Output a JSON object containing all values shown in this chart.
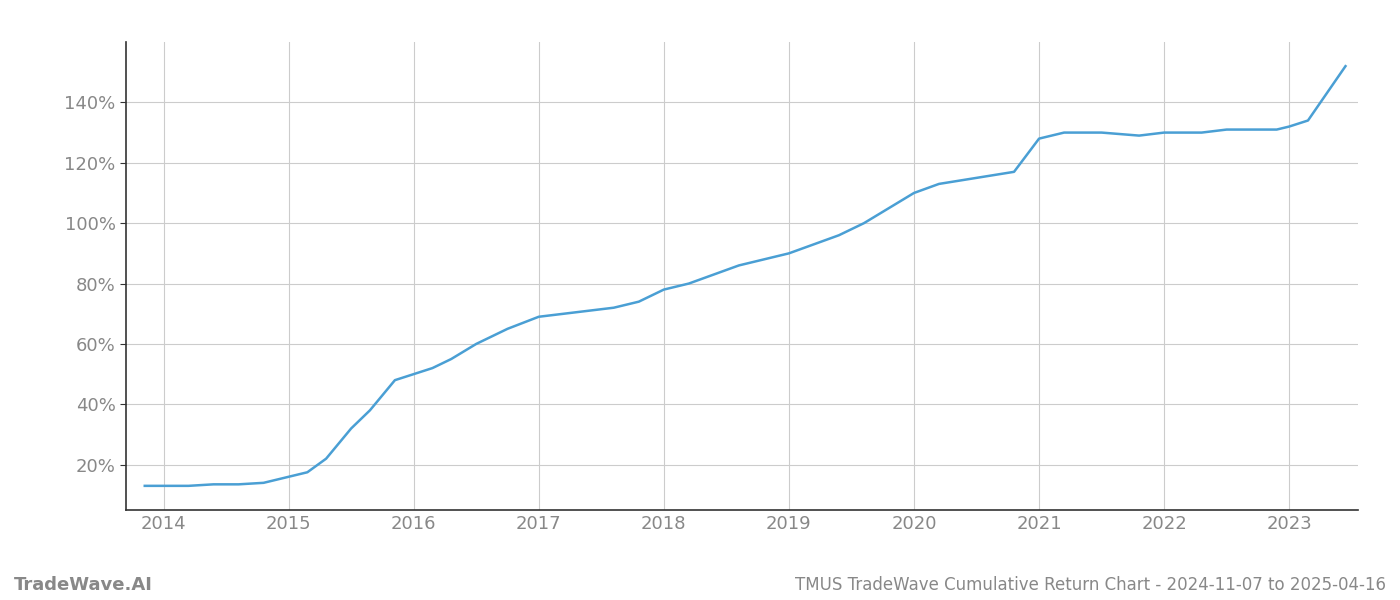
{
  "title": "TMUS TradeWave Cumulative Return Chart - 2024-11-07 to 2025-04-16",
  "watermark": "TradeWave.AI",
  "line_color": "#4a9fd4",
  "background_color": "#ffffff",
  "grid_color": "#cccccc",
  "x_values": [
    2013.85,
    2014.0,
    2014.2,
    2014.4,
    2014.6,
    2014.8,
    2015.0,
    2015.05,
    2015.1,
    2015.15,
    2015.3,
    2015.5,
    2015.65,
    2015.85,
    2016.0,
    2016.15,
    2016.3,
    2016.5,
    2016.75,
    2017.0,
    2017.2,
    2017.4,
    2017.6,
    2017.8,
    2018.0,
    2018.2,
    2018.4,
    2018.6,
    2018.8,
    2019.0,
    2019.2,
    2019.4,
    2019.6,
    2019.8,
    2020.0,
    2020.2,
    2020.35,
    2020.5,
    2020.8,
    2021.0,
    2021.1,
    2021.2,
    2021.5,
    2021.8,
    2022.0,
    2022.3,
    2022.5,
    2022.65,
    2022.8,
    2022.9,
    2023.0,
    2023.15,
    2023.3,
    2023.45
  ],
  "y_values": [
    13,
    13,
    13,
    13.5,
    13.5,
    14,
    16,
    16.5,
    17,
    17.5,
    22,
    32,
    38,
    48,
    50,
    52,
    55,
    60,
    65,
    69,
    70,
    71,
    72,
    74,
    78,
    80,
    83,
    86,
    88,
    90,
    93,
    96,
    100,
    105,
    110,
    113,
    114,
    115,
    117,
    128,
    129,
    130,
    130,
    129,
    130,
    130,
    131,
    131,
    131,
    131,
    132,
    134,
    143,
    152
  ],
  "xlim": [
    2013.7,
    2023.55
  ],
  "ylim": [
    5,
    160
  ],
  "yticks": [
    20,
    40,
    60,
    80,
    100,
    120,
    140
  ],
  "xticks": [
    2014,
    2015,
    2016,
    2017,
    2018,
    2019,
    2020,
    2021,
    2022,
    2023
  ],
  "tick_label_color": "#888888",
  "tick_fontsize": 13,
  "watermark_fontsize": 13,
  "watermark_fontweight": "bold",
  "title_fontsize": 12,
  "line_width": 1.8,
  "left_spine_color": "#333333",
  "bottom_spine_color": "#333333"
}
